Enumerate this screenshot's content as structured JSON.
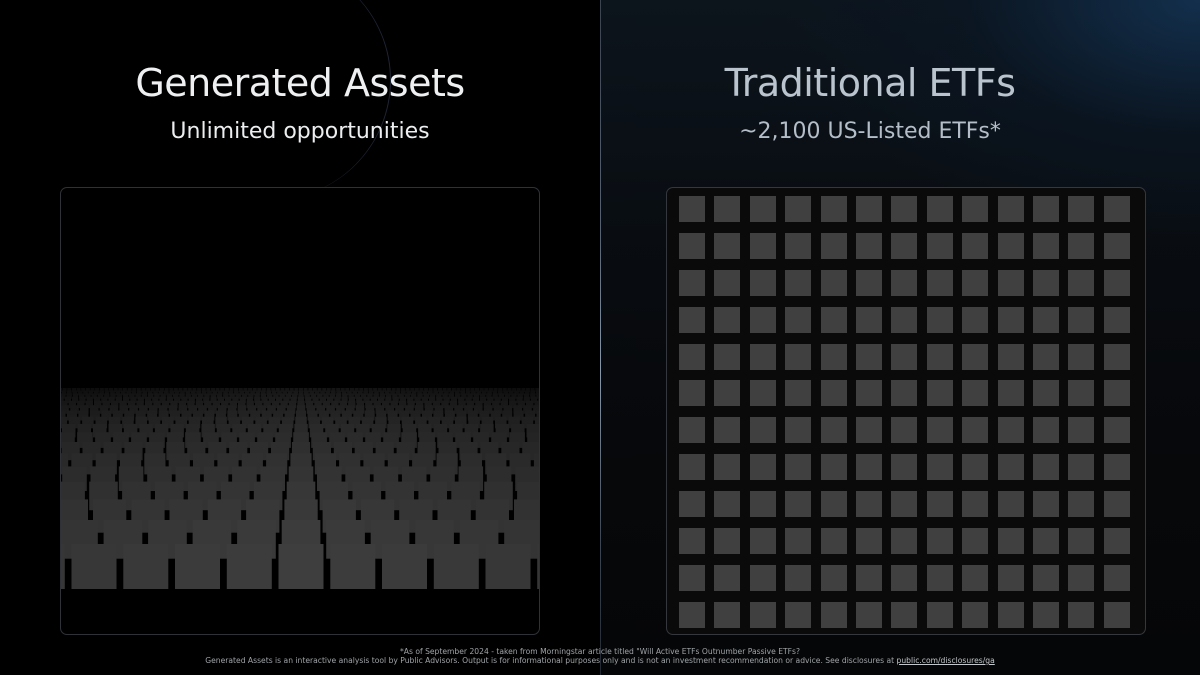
{
  "left": {
    "title": "Generated Assets",
    "subtitle": "Unlimited opportunities"
  },
  "right": {
    "title": "Traditional ETFs",
    "subtitle": "~2,100 US-Listed ETFs*",
    "grid": {
      "columns": 13,
      "rows": 12
    }
  },
  "footnote": {
    "line1": "*As of September 2024 - taken from Morningstar article titled \"Will Active ETFs Outnumber Passive ETFs?",
    "line2": "Generated Assets is an interactive analysis tool by Public Advisors. Output is for informational purposes only and is not an investment recommendation or advice. See disclosures at ",
    "link": "public.com/disclosures/ga"
  },
  "colors": {
    "tile": "#404040",
    "accent": "#7d8fa3"
  }
}
